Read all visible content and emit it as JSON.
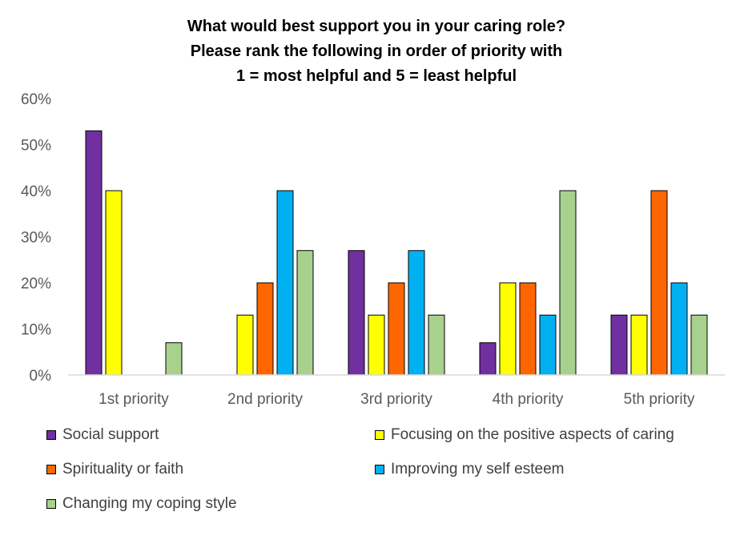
{
  "chart_data": {
    "type": "bar",
    "title": [
      "What would best support you in your caring role?",
      "Please rank the following in order of priority with",
      "1 = most helpful and 5 = least helpful"
    ],
    "categories": [
      "1st priority",
      "2nd priority",
      "3rd priority",
      "4th priority",
      "5th priority"
    ],
    "series": [
      {
        "name": "Social support",
        "color": "#7030A0",
        "values": [
          53,
          0,
          27,
          7,
          13
        ]
      },
      {
        "name": "Focusing on the positive aspects of caring",
        "color": "#FFFF00",
        "values": [
          40,
          13,
          13,
          20,
          13
        ]
      },
      {
        "name": "Spirituality or faith",
        "color": "#FF6600",
        "values": [
          0,
          20,
          20,
          20,
          40
        ]
      },
      {
        "name": "Improving my self esteem",
        "color": "#00B0F0",
        "values": [
          0,
          40,
          27,
          13,
          20
        ]
      },
      {
        "name": "Changing my coping style",
        "color": "#A9D18E",
        "values": [
          7,
          27,
          13,
          40,
          13
        ]
      }
    ],
    "ylim": [
      0,
      60
    ],
    "yticks": [
      "0%",
      "10%",
      "20%",
      "30%",
      "40%",
      "50%",
      "60%"
    ],
    "ytick_values": [
      0,
      10,
      20,
      30,
      40,
      50,
      60
    ],
    "grid": false,
    "legend_position": "bottom",
    "xlabel": "",
    "ylabel": ""
  }
}
